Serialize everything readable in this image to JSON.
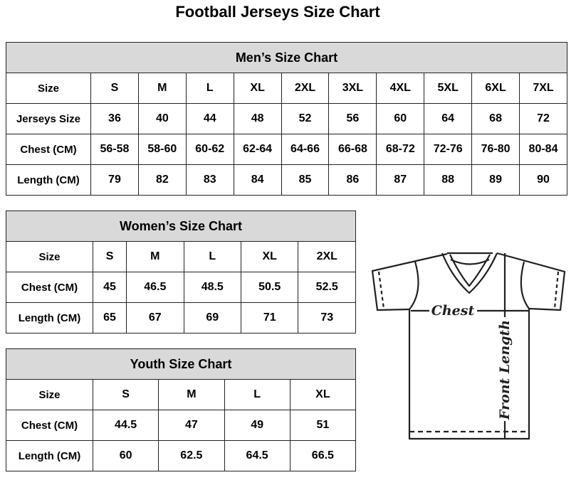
{
  "title": "Football Jerseys Size Chart",
  "men": {
    "title": "Men’s Size Chart",
    "rows": [
      [
        "Size",
        "S",
        "M",
        "L",
        "XL",
        "2XL",
        "3XL",
        "4XL",
        "5XL",
        "6XL",
        "7XL"
      ],
      [
        "Jerseys Size",
        "36",
        "40",
        "44",
        "48",
        "52",
        "56",
        "60",
        "64",
        "68",
        "72"
      ],
      [
        "Chest (CM)",
        "56-58",
        "58-60",
        "60-62",
        "62-64",
        "64-66",
        "66-68",
        "68-72",
        "72-76",
        "76-80",
        "80-84"
      ],
      [
        "Length (CM)",
        "79",
        "82",
        "83",
        "84",
        "85",
        "86",
        "87",
        "88",
        "89",
        "90"
      ]
    ]
  },
  "women": {
    "title": "Women’s Size Chart",
    "rows": [
      [
        "Size",
        "S",
        "M",
        "L",
        "XL",
        "2XL"
      ],
      [
        "Chest (CM)",
        "45",
        "46.5",
        "48.5",
        "50.5",
        "52.5"
      ],
      [
        "Length (CM)",
        "65",
        "67",
        "69",
        "71",
        "73"
      ]
    ]
  },
  "youth": {
    "title": "Youth Size Chart",
    "rows": [
      [
        "Size",
        "S",
        "M",
        "L",
        "XL"
      ],
      [
        "Chest (CM)",
        "44.5",
        "47",
        "49",
        "51"
      ],
      [
        "Length (CM)",
        "60",
        "62.5",
        "64.5",
        "66.5"
      ]
    ]
  },
  "diagram": {
    "chest_label": "Chest",
    "length_label": "Front Length"
  }
}
